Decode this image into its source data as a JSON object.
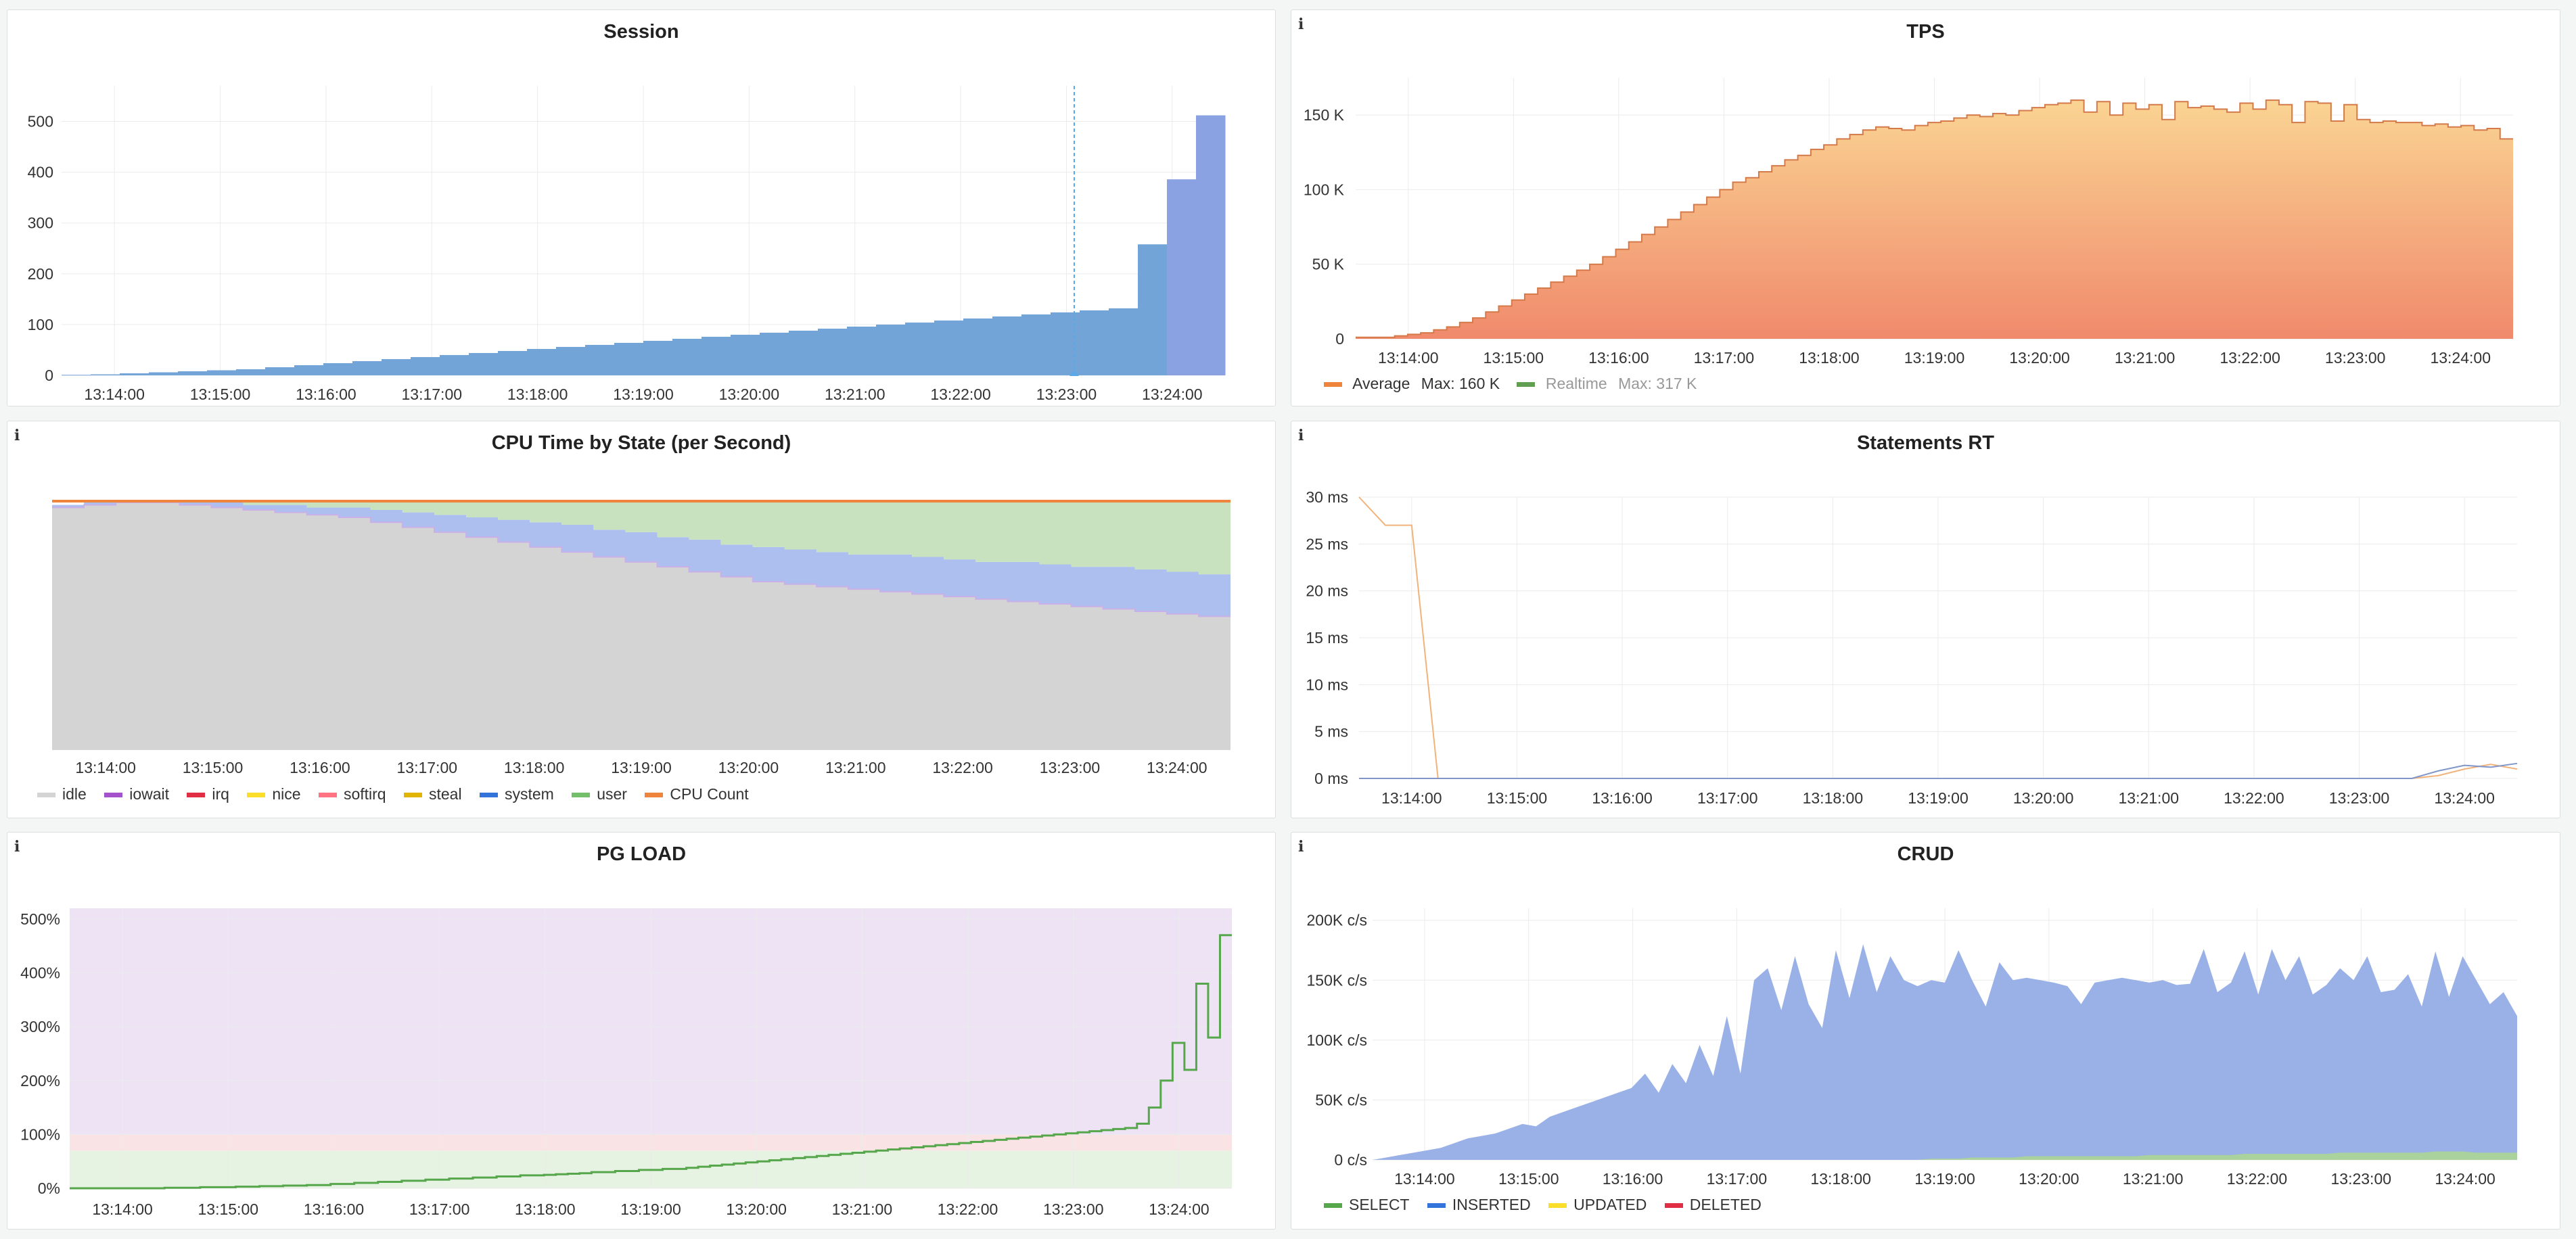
{
  "time_ticks": [
    "13:14:00",
    "13:15:00",
    "13:16:00",
    "13:17:00",
    "13:18:00",
    "13:19:00",
    "13:20:00",
    "13:21:00",
    "13:22:00",
    "13:23:00",
    "13:24:00"
  ],
  "info_glyph": "i",
  "panels": {
    "session": {
      "title": "Session",
      "chart_data": {
        "type": "bar",
        "title": "Session",
        "ylim": [
          0,
          570
        ],
        "y_ticks": [
          "0",
          "100",
          "200",
          "300",
          "400",
          "500"
        ],
        "hover_time": "13:23:00",
        "values": [
          1,
          2,
          4,
          6,
          8,
          10,
          12,
          16,
          20,
          24,
          28,
          32,
          36,
          40,
          44,
          48,
          52,
          56,
          60,
          64,
          68,
          72,
          76,
          80,
          84,
          88,
          92,
          96,
          100,
          104,
          108,
          112,
          116,
          120,
          124,
          128,
          132,
          258,
          386,
          512
        ],
        "colors": [
          "#73a4d8",
          "#73a4d8",
          "#73a4d8",
          "#73a4d8",
          "#73a4d8",
          "#73a4d8",
          "#73a4d8",
          "#73a4d8",
          "#73a4d8",
          "#73a4d8",
          "#73a4d8",
          "#73a4d8",
          "#73a4d8",
          "#73a4d8",
          "#73a4d8",
          "#73a4d8",
          "#73a4d8",
          "#73a4d8",
          "#73a4d8",
          "#73a4d8",
          "#73a4d8",
          "#73a4d8",
          "#73a4d8",
          "#73a4d8",
          "#73a4d8",
          "#73a4d8",
          "#73a4d8",
          "#73a4d8",
          "#73a4d8",
          "#73a4d8",
          "#73a4d8",
          "#73a4d8",
          "#73a4d8",
          "#73a4d8",
          "#73a4d8",
          "#73a4d8",
          "#73a4d8",
          "#73a4d8",
          "#8aa2e2",
          "#8aa2e2"
        ]
      }
    },
    "tps": {
      "title": "TPS",
      "chart_data": {
        "type": "area",
        "title": "TPS",
        "ylim": [
          0,
          175
        ],
        "y_ticks": [
          "0",
          "50 K",
          "100 K",
          "150 K"
        ],
        "series": [
          {
            "name": "Average",
            "stat": "Max: 160 K",
            "color": "#ef843c",
            "values": [
              1,
              1,
              1,
              2,
              3,
              4,
              6,
              8,
              11,
              14,
              18,
              22,
              26,
              30,
              34,
              38,
              42,
              46,
              50,
              55,
              60,
              65,
              70,
              75,
              80,
              85,
              90,
              95,
              100,
              105,
              108,
              112,
              116,
              120,
              123,
              127,
              130,
              134,
              137,
              140,
              142,
              141,
              140,
              143,
              145,
              146,
              148,
              150,
              149,
              151,
              150,
              153,
              155,
              157,
              158,
              160,
              152,
              159,
              150,
              158,
              154,
              157,
              147,
              159,
              155,
              156,
              154,
              152,
              158,
              154,
              160,
              157,
              145,
              159,
              158,
              146,
              157,
              147,
              145,
              146,
              145,
              145,
              143,
              144,
              142,
              143,
              140,
              141,
              134
            ]
          },
          {
            "name": "Realtime",
            "stat": "Max: 317 K",
            "color": "#629e51",
            "values": []
          }
        ]
      }
    },
    "cpu": {
      "title": "CPU Time by State (per Second)",
      "chart_data": {
        "type": "area",
        "title": "CPU Time by State (per Second)",
        "legend_position": "bottom",
        "series": [
          {
            "name": "idle",
            "color": "#d4d4d4",
            "values": [
              98,
              99,
              100,
              100,
              99,
              98,
              97,
              96,
              95,
              94,
              92,
              90,
              88,
              86,
              84,
              82,
              80,
              78,
              76,
              74,
              72,
              70,
              68,
              67,
              66,
              65,
              64,
              63,
              62,
              61,
              60,
              59,
              58,
              57,
              56,
              55,
              54
            ]
          },
          {
            "name": "iowait",
            "color": "#a352cc",
            "values": []
          },
          {
            "name": "irq",
            "color": "#e02f44",
            "values": []
          },
          {
            "name": "nice",
            "color": "#fade2a",
            "values": []
          },
          {
            "name": "softirq",
            "color": "#ff7383",
            "values": []
          },
          {
            "name": "steal",
            "color": "#e0b400",
            "values": []
          },
          {
            "name": "system",
            "color": "#adbfee",
            "values": [
              1,
              1,
              0,
              0,
              1,
              2,
              2,
              3,
              3,
              4,
              5,
              6,
              7,
              8,
              9,
              10,
              11,
              11,
              12,
              12,
              13,
              13,
              14,
              14,
              14,
              14,
              15,
              15,
              15,
              15,
              16,
              16,
              16,
              17,
              17,
              17,
              17
            ]
          },
          {
            "name": "user",
            "color": "#c8e2c0",
            "values": [
              0,
              0,
              0,
              0,
              0,
              0,
              1,
              1,
              2,
              2,
              3,
              4,
              5,
              6,
              7,
              8,
              9,
              11,
              12,
              14,
              15,
              17,
              18,
              19,
              20,
              21,
              21,
              22,
              23,
              24,
              24,
              25,
              26,
              26,
              27,
              28,
              29
            ]
          },
          {
            "name": "CPU Count",
            "color": "#ef843c",
            "values": []
          }
        ]
      }
    },
    "rt": {
      "title": "Statements RT",
      "chart_data": {
        "type": "line",
        "title": "Statements RT",
        "ylim": [
          0,
          30
        ],
        "y_ticks": [
          "0 ms",
          "5 ms",
          "10 ms",
          "15 ms",
          "20 ms",
          "25 ms",
          "30 ms"
        ],
        "series": [
          {
            "color": "#f2b27a",
            "values": [
              30,
              27,
              27,
              0,
              0,
              0,
              0,
              0,
              0,
              0,
              0,
              0,
              0,
              0,
              0,
              0,
              0,
              0,
              0,
              0,
              0,
              0,
              0,
              0,
              0,
              0,
              0,
              0,
              0,
              0,
              0,
              0,
              0,
              0,
              0,
              0,
              0,
              0,
              0,
              0,
              0,
              0.3,
              1,
              1.5,
              1
            ]
          },
          {
            "color": "#8096c9",
            "values": [
              0,
              0,
              0,
              0,
              0,
              0,
              0,
              0,
              0,
              0,
              0,
              0,
              0,
              0,
              0,
              0,
              0,
              0,
              0,
              0,
              0,
              0,
              0,
              0,
              0,
              0,
              0,
              0,
              0,
              0,
              0,
              0,
              0,
              0,
              0,
              0,
              0,
              0,
              0,
              0,
              0,
              0.8,
              1.4,
              1.2,
              1.6
            ]
          }
        ]
      }
    },
    "pgload": {
      "title": "PG LOAD",
      "chart_data": {
        "type": "line",
        "title": "PG LOAD",
        "ylim": [
          0,
          520
        ],
        "y_ticks": [
          "0%",
          "100%",
          "200%",
          "300%",
          "400%",
          "500%"
        ],
        "thresholds": [
          {
            "from": 0,
            "to": 70,
            "color": "#e6f2e2"
          },
          {
            "from": 70,
            "to": 100,
            "color": "#fae3e4"
          },
          {
            "from": 100,
            "to": 520,
            "color": "#ede3f5"
          }
        ],
        "series": [
          {
            "color": "#56a64b",
            "values": [
              0,
              0,
              0,
              0,
              0,
              0,
              0,
              0,
              1,
              1,
              1,
              2,
              2,
              2,
              3,
              3,
              4,
              4,
              5,
              5,
              6,
              6,
              8,
              8,
              10,
              10,
              12,
              12,
              14,
              14,
              16,
              16,
              18,
              18,
              20,
              20,
              22,
              22,
              24,
              24,
              25,
              26,
              27,
              28,
              30,
              30,
              32,
              32,
              34,
              34,
              36,
              36,
              38,
              40,
              42,
              44,
              46,
              48,
              50,
              52,
              54,
              56,
              58,
              60,
              62,
              64,
              66,
              68,
              70,
              72,
              74,
              76,
              78,
              80,
              82,
              84,
              86,
              88,
              90,
              92,
              94,
              96,
              98,
              100,
              102,
              104,
              106,
              108,
              110,
              112,
              120,
              150,
              200,
              270,
              220,
              380,
              280,
              470
            ]
          }
        ]
      }
    },
    "crud": {
      "title": "CRUD",
      "chart_data": {
        "type": "area",
        "title": "CRUD",
        "ylim": [
          0,
          210
        ],
        "y_ticks": [
          "0 c/s",
          "50K c/s",
          "100K c/s",
          "150K c/s",
          "200K c/s"
        ],
        "series": [
          {
            "name": "SELECT",
            "color": "#73bf69",
            "values": [
              0,
              0,
              0,
              0,
              0,
              0,
              0,
              0,
              0,
              0,
              0,
              0,
              0,
              0,
              0,
              0,
              0,
              0,
              0,
              0,
              0,
              0,
              0,
              0,
              0,
              0,
              0,
              0,
              0,
              0,
              0,
              0,
              0,
              0,
              0,
              0,
              0,
              0,
              0,
              0,
              0,
              1,
              1,
              1,
              2,
              2,
              2,
              2,
              3,
              3,
              3,
              3,
              3,
              3,
              3,
              3,
              3,
              4,
              4,
              4,
              4,
              4,
              4,
              4,
              5,
              5,
              5,
              5,
              5,
              5,
              5,
              6,
              6,
              6,
              6,
              6,
              6,
              6,
              7,
              7,
              7,
              6,
              6,
              6,
              6
            ]
          },
          {
            "name": "INSERTED",
            "color": "#99b1e6",
            "values": [
              0,
              2,
              4,
              6,
              8,
              10,
              14,
              18,
              20,
              22,
              26,
              30,
              28,
              36,
              40,
              44,
              48,
              52,
              56,
              60,
              72,
              56,
              80,
              64,
              96,
              70,
              120,
              72,
              150,
              160,
              125,
              170,
              130,
              110,
              175,
              135,
              180,
              140,
              170,
              150,
              145,
              150,
              148,
              175,
              150,
              128,
              165,
              150,
              152,
              150,
              148,
              145,
              130,
              148,
              150,
              152,
              150,
              148,
              150,
              146,
              147,
              176,
              140,
              148,
              174,
              138,
              176,
              150,
              170,
              138,
              146,
              160,
              150,
              170,
              140,
              142,
              155,
              128,
              174,
              136,
              170,
              150,
              130,
              140,
              120
            ]
          },
          {
            "name": "UPDATED",
            "color": "#fade2a",
            "values": []
          },
          {
            "name": "DELETED",
            "color": "#f2495c",
            "values": []
          }
        ]
      }
    }
  }
}
